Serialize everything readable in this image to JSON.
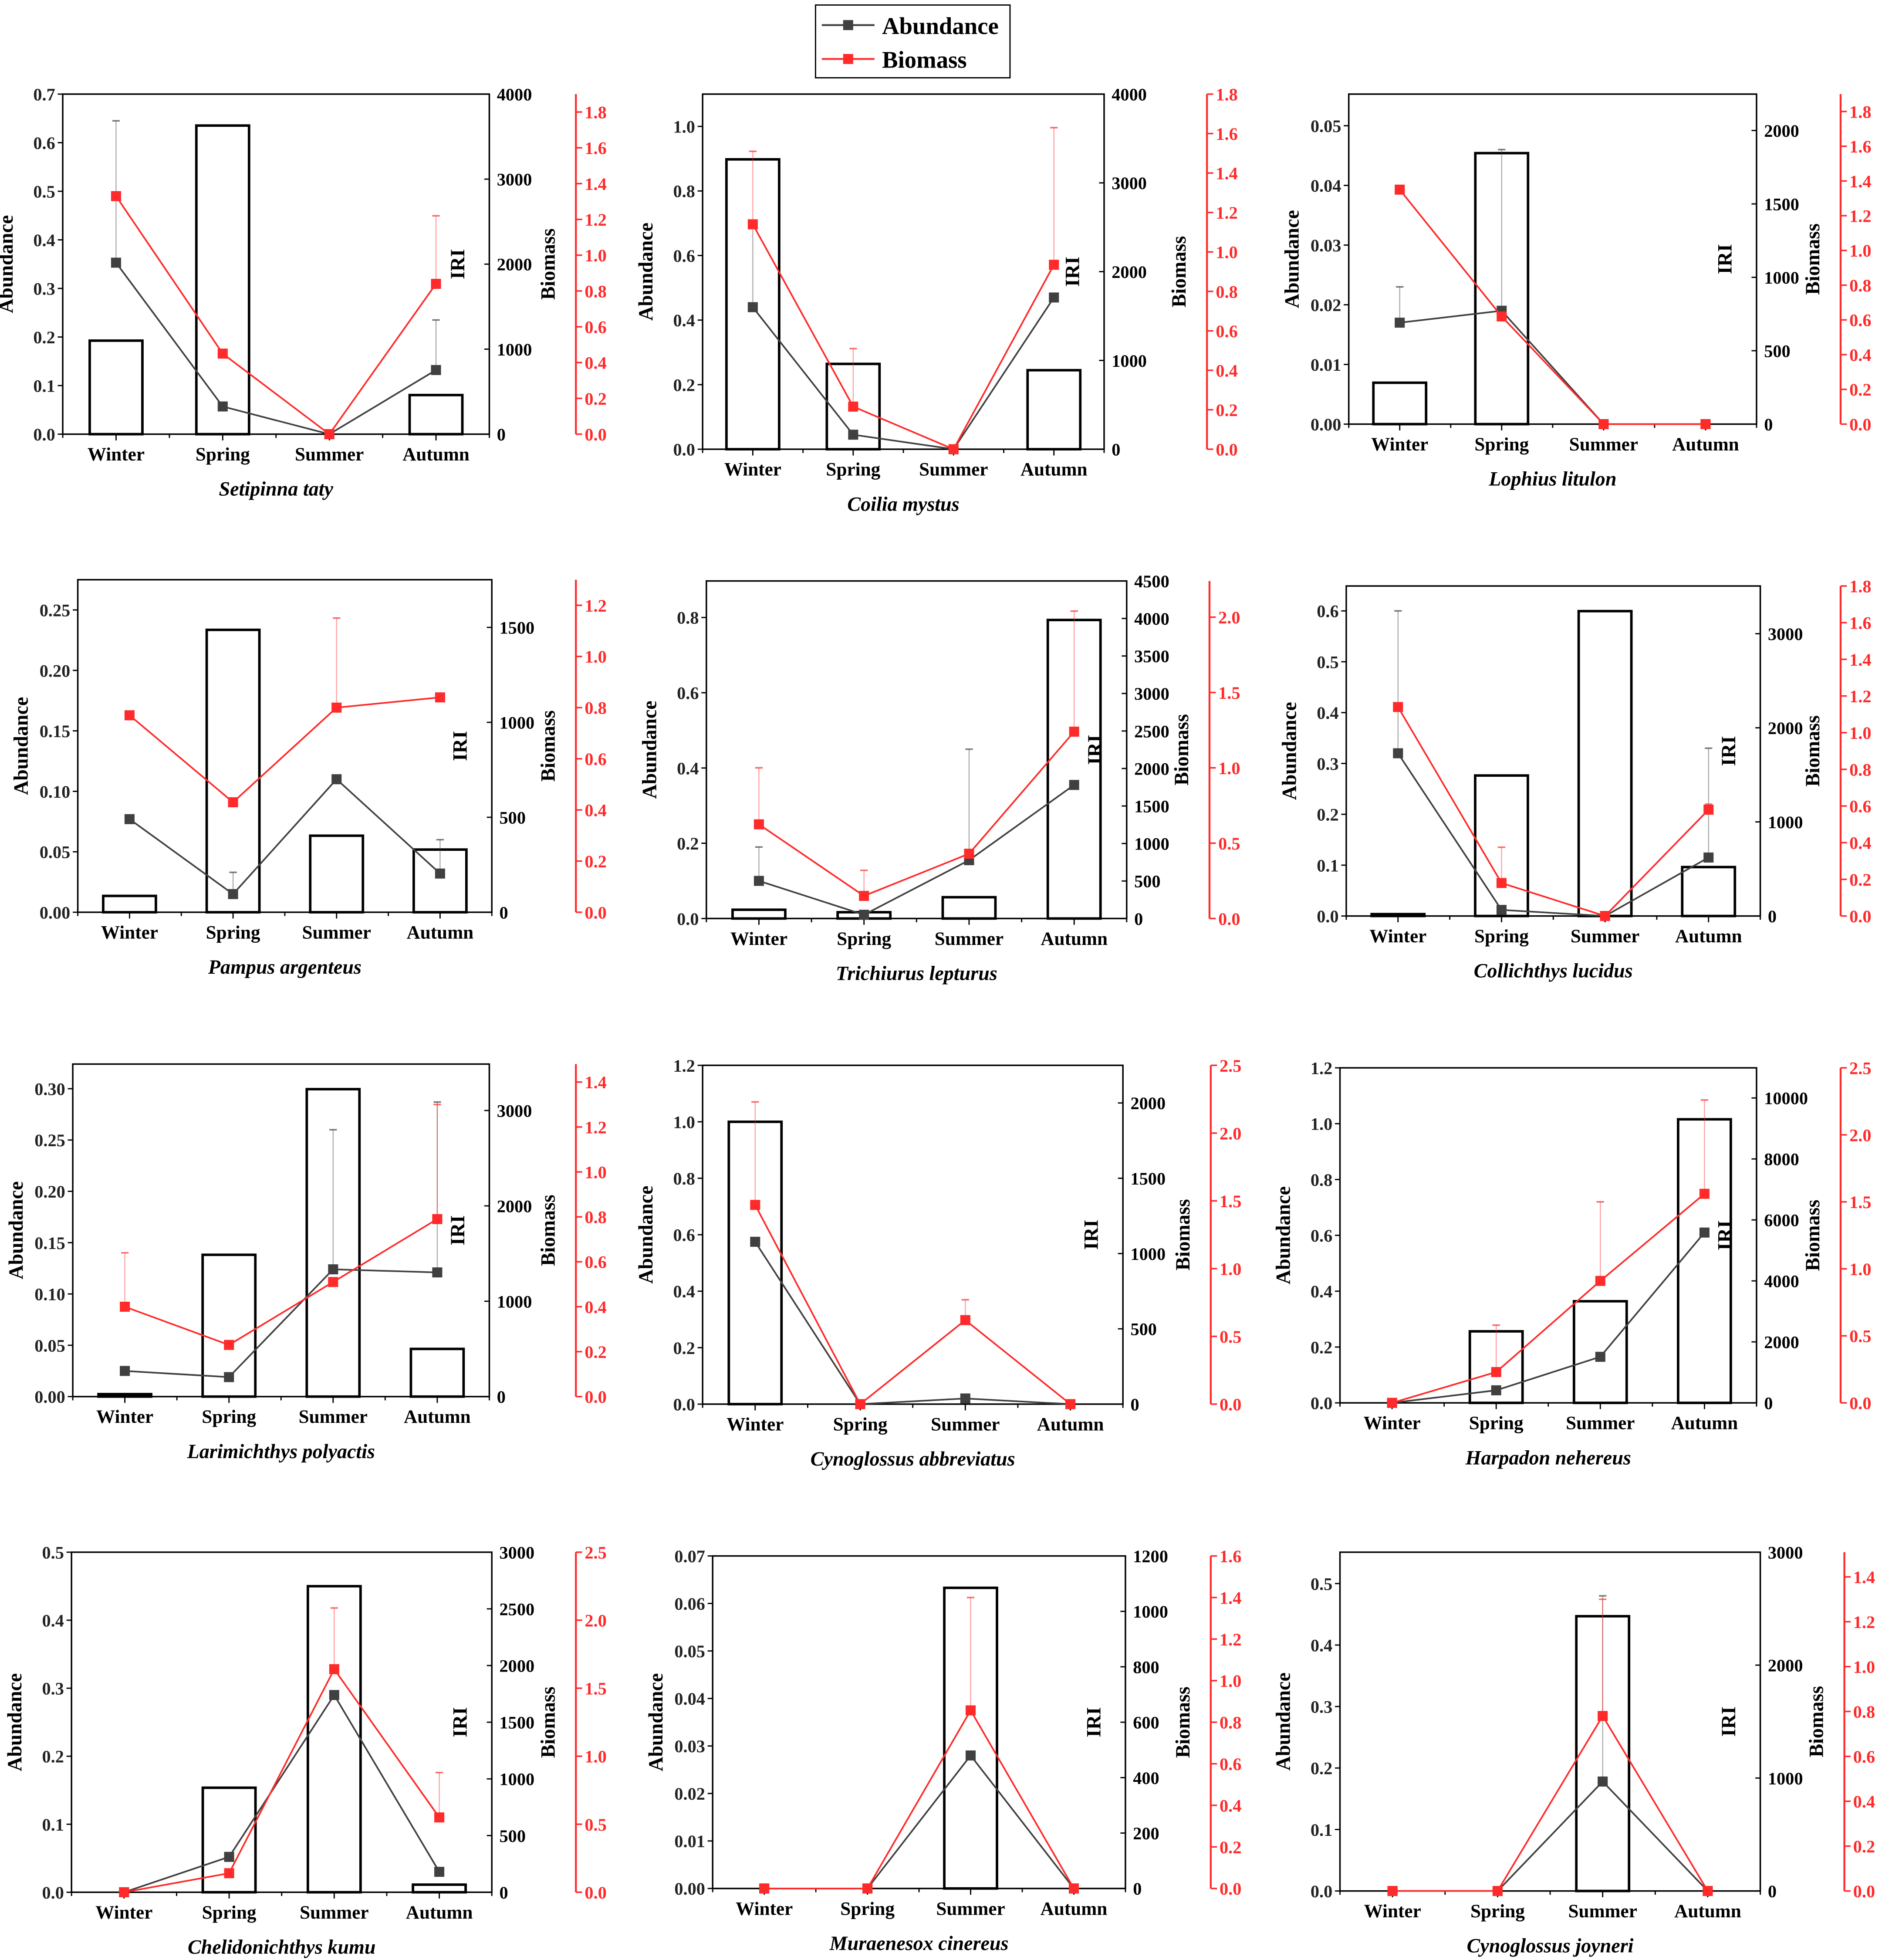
{
  "legend": {
    "entries": [
      {
        "label": "Abundance",
        "color": "#404040"
      },
      {
        "label": "Biomass",
        "color": "#ff2a2a"
      }
    ]
  },
  "chart_data": [
    {
      "type": "bar+line",
      "title": "Setipinna taty",
      "categories": [
        "Winter",
        "Spring",
        "Summer",
        "Autumn"
      ],
      "ylabel_left": "Abundance",
      "ylabel_iri": "IRI",
      "ylabel_right": "Biomass",
      "ab_lim": [
        0,
        0.7
      ],
      "ab_ticks": [
        "0.0",
        "0.1",
        "0.2",
        "0.3",
        "0.4",
        "0.5",
        "0.6",
        "0.7"
      ],
      "iri_lim": [
        0,
        4000
      ],
      "iri_ticks": [
        "0",
        "1000",
        "2000",
        "3000",
        "4000"
      ],
      "bio_lim": [
        0,
        1.9
      ],
      "bio_ticks": [
        "0.0",
        "0.2",
        "0.4",
        "0.6",
        "0.8",
        "1.0",
        "1.2",
        "1.4",
        "1.6",
        "1.8"
      ],
      "iri": [
        1100,
        3630,
        0,
        460
      ],
      "abundance": [
        0.353,
        0.057,
        0,
        0.132
      ],
      "biomass": [
        1.33,
        0.45,
        0,
        0.84
      ],
      "ab_err": [
        0.645,
        null,
        null,
        0.235
      ],
      "bio_err": [
        null,
        null,
        null,
        1.22
      ]
    },
    {
      "type": "bar+line",
      "title": "Coilia mystus",
      "categories": [
        "Winter",
        "Spring",
        "Summer",
        "Autumn"
      ],
      "ylabel_left": "Abundance",
      "ylabel_iri": "IRI",
      "ylabel_right": "Biomass",
      "ab_lim": [
        0,
        1.1
      ],
      "ab_ticks": [
        "0.0",
        "0.2",
        "0.4",
        "0.6",
        "0.8",
        "1.0"
      ],
      "iri_lim": [
        0,
        4000
      ],
      "iri_ticks": [
        "0",
        "1000",
        "2000",
        "3000",
        "4000"
      ],
      "bio_lim": [
        0,
        1.8
      ],
      "bio_ticks": [
        "0.0",
        "0.2",
        "0.4",
        "0.6",
        "0.8",
        "1.0",
        "1.2",
        "1.4",
        "1.6",
        "1.8"
      ],
      "iri": [
        3265,
        961,
        0,
        890
      ],
      "abundance": [
        0.44,
        0.045,
        0,
        0.47
      ],
      "biomass": [
        1.14,
        0.216,
        0,
        0.935
      ],
      "ab_err": [
        0.7,
        null,
        null,
        null
      ],
      "bio_err": [
        1.51,
        0.51,
        null,
        1.63
      ]
    },
    {
      "type": "bar+line",
      "title": "Lophius litulon",
      "categories": [
        "Winter",
        "Spring",
        "Summer",
        "Autumn"
      ],
      "ylabel_left": "Abundance",
      "ylabel_iri": "IRI",
      "ylabel_right": "Biomass",
      "ab_lim": [
        0,
        0.0553
      ],
      "ab_ticks": [
        "0.00",
        "0.01",
        "0.02",
        "0.03",
        "0.04",
        "0.05"
      ],
      "iri_lim": [
        0,
        2248
      ],
      "iri_ticks": [
        "0",
        "500",
        "1000",
        "1500",
        "2000"
      ],
      "bio_lim": [
        0,
        1.9
      ],
      "bio_ticks": [
        "0.0",
        "0.2",
        "0.4",
        "0.6",
        "0.8",
        "1.0",
        "1.2",
        "1.4",
        "1.6",
        "1.8"
      ],
      "iri": [
        282,
        1846,
        0,
        0
      ],
      "abundance": [
        0.017,
        0.019,
        0,
        0
      ],
      "biomass": [
        1.35,
        0.62,
        0,
        0
      ],
      "ab_err": [
        0.023,
        0.046,
        null,
        null
      ],
      "bio_err": [
        null,
        null,
        null,
        null
      ]
    },
    {
      "type": "bar+line",
      "title": "Pampus argenteus",
      "categories": [
        "Winter",
        "Spring",
        "Summer",
        "Autumn"
      ],
      "ylabel_left": "Abundance",
      "ylabel_iri": "IRI",
      "ylabel_right": "Biomass",
      "ab_lim": [
        0,
        0.275
      ],
      "ab_ticks": [
        "0.00",
        "0.05",
        "0.10",
        "0.15",
        "0.20",
        "0.25"
      ],
      "iri_lim": [
        0,
        1751
      ],
      "iri_ticks": [
        "0",
        "500",
        "1000",
        "1500"
      ],
      "bio_lim": [
        0,
        1.3
      ],
      "bio_ticks": [
        "0.0",
        "0.2",
        "0.4",
        "0.6",
        "0.8",
        "1.0",
        "1.2"
      ],
      "iri": [
        86,
        1487,
        403,
        330
      ],
      "abundance": [
        0.077,
        0.015,
        0.11,
        0.032
      ],
      "biomass": [
        0.77,
        0.43,
        0.8,
        0.84
      ],
      "ab_err": [
        null,
        0.033,
        null,
        0.06
      ],
      "bio_err": [
        null,
        null,
        1.15,
        null
      ]
    },
    {
      "type": "bar+line",
      "title": "Trichiurus lepturus",
      "categories": [
        "Winter",
        "Spring",
        "Summer",
        "Autumn"
      ],
      "ylabel_left": "Abundance",
      "ylabel_iri": "IRI",
      "ylabel_right": "Biomass",
      "ab_lim": [
        0,
        0.897
      ],
      "ab_ticks": [
        "0.0",
        "0.2",
        "0.4",
        "0.6",
        "0.8"
      ],
      "iri_lim": [
        0,
        4500
      ],
      "iri_ticks": [
        "0",
        "500",
        "1000",
        "1500",
        "2000",
        "2500",
        "3000",
        "3500",
        "4000",
        "4500"
      ],
      "bio_lim": [
        0,
        2.24
      ],
      "bio_ticks": [
        "0.0",
        "0.5",
        "1.0",
        "1.5",
        "2.0"
      ],
      "iri": [
        117,
        84,
        284,
        3980
      ],
      "abundance": [
        0.1,
        0.01,
        0.155,
        0.355
      ],
      "biomass": [
        0.625,
        0.15,
        0.43,
        1.24
      ],
      "ab_err": [
        0.19,
        null,
        0.45,
        null
      ],
      "bio_err": [
        1.0,
        0.32,
        null,
        2.04
      ]
    },
    {
      "type": "bar+line",
      "title": "Collichthys lucidus",
      "categories": [
        "Winter",
        "Spring",
        "Summer",
        "Autumn"
      ],
      "ylabel_left": "Abundance",
      "ylabel_iri": "IRI",
      "ylabel_right": "Biomass",
      "ab_lim": [
        0,
        0.649
      ],
      "ab_ticks": [
        "0.0",
        "0.1",
        "0.2",
        "0.3",
        "0.4",
        "0.5",
        "0.6"
      ],
      "iri_lim": [
        0,
        3507
      ],
      "iri_ticks": [
        "0",
        "1000",
        "2000",
        "3000"
      ],
      "bio_lim": [
        0,
        1.8
      ],
      "bio_ticks": [
        "0.0",
        "0.2",
        "0.4",
        "0.6",
        "0.8",
        "1.0",
        "1.2",
        "1.4",
        "1.6",
        "1.8"
      ],
      "iri": [
        20,
        1493,
        3240,
        520
      ],
      "abundance": [
        0.32,
        0.012,
        0,
        0.115
      ],
      "biomass": [
        1.14,
        0.18,
        0,
        0.58
      ],
      "ab_err": [
        0.6,
        null,
        null,
        0.33
      ],
      "bio_err": [
        null,
        0.375,
        null,
        0.61
      ]
    },
    {
      "type": "bar+line",
      "title": "Larimichthys polyactis",
      "categories": [
        "Winter",
        "Spring",
        "Summer",
        "Autumn"
      ],
      "ylabel_left": "Abundance",
      "ylabel_iri": "IRI",
      "ylabel_right": "Biomass",
      "ab_lim": [
        0,
        0.324
      ],
      "ab_ticks": [
        "0.00",
        "0.05",
        "0.10",
        "0.15",
        "0.20",
        "0.25",
        "0.30"
      ],
      "iri_lim": [
        0,
        3487
      ],
      "iri_ticks": [
        "0",
        "1000",
        "2000",
        "3000"
      ],
      "bio_lim": [
        0,
        1.48
      ],
      "bio_ticks": [
        "0.0",
        "0.2",
        "0.4",
        "0.6",
        "0.8",
        "1.0",
        "1.2",
        "1.4"
      ],
      "iri": [
        26,
        1487,
        3224,
        500
      ],
      "abundance": [
        0.025,
        0.019,
        0.124,
        0.121
      ],
      "biomass": [
        0.4,
        0.23,
        0.51,
        0.79
      ],
      "ab_err": [
        null,
        null,
        0.26,
        0.287
      ],
      "bio_err": [
        0.64,
        null,
        null,
        1.3
      ]
    },
    {
      "type": "bar+line",
      "title": "Cynoglossus abbreviatus",
      "categories": [
        "Winter",
        "Spring",
        "Summer",
        "Autumn"
      ],
      "ylabel_left": "Abundance",
      "ylabel_iri": "IRI",
      "ylabel_right": "Biomass",
      "ab_lim": [
        0,
        1.2
      ],
      "ab_ticks": [
        "0.0",
        "0.2",
        "0.4",
        "0.6",
        "0.8",
        "1.0",
        "1.2"
      ],
      "iri_lim": [
        0,
        2250
      ],
      "iri_ticks": [
        "0",
        "500",
        "1000",
        "1500",
        "2000"
      ],
      "bio_lim": [
        0,
        2.5
      ],
      "bio_ticks": [
        "0.0",
        "0.5",
        "1.0",
        "1.5",
        "2.0",
        "2.5"
      ],
      "iri": [
        1875,
        0,
        0,
        0
      ],
      "abundance": [
        0.575,
        0,
        0.02,
        0
      ],
      "biomass": [
        1.47,
        0,
        0.62,
        0
      ],
      "ab_err": [
        null,
        null,
        null,
        null
      ],
      "bio_err": [
        2.23,
        null,
        0.77,
        null
      ]
    },
    {
      "type": "bar+line",
      "title": "Harpadon nehereus",
      "categories": [
        "Winter",
        "Spring",
        "Summer",
        "Autumn"
      ],
      "ylabel_left": "Abundance",
      "ylabel_iri": "IRI",
      "ylabel_right": "Biomass",
      "ab_lim": [
        0,
        1.2
      ],
      "ab_ticks": [
        "0.0",
        "0.2",
        "0.4",
        "0.6",
        "0.8",
        "1.0",
        "1.2"
      ],
      "iri_lim": [
        0,
        10988
      ],
      "iri_ticks": [
        "0",
        "2000",
        "4000",
        "6000",
        "8000",
        "10000"
      ],
      "bio_lim": [
        0,
        2.5
      ],
      "bio_ticks": [
        "0.0",
        "0.5",
        "1.0",
        "1.5",
        "2.0",
        "2.5"
      ],
      "iri": [
        0,
        2346,
        3333,
        9300
      ],
      "abundance": [
        0,
        0.045,
        0.165,
        0.61
      ],
      "biomass": [
        0,
        0.23,
        0.91,
        1.56
      ],
      "ab_err": [
        null,
        null,
        null,
        null
      ],
      "bio_err": [
        null,
        0.58,
        1.5,
        2.26
      ]
    },
    {
      "type": "bar+line",
      "title": "Chelidonichthys kumu",
      "categories": [
        "Winter",
        "Spring",
        "Summer",
        "Autumn"
      ],
      "ylabel_left": "Abundance",
      "ylabel_iri": "IRI",
      "ylabel_right": "Biomass",
      "ab_lim": [
        0,
        0.5
      ],
      "ab_ticks": [
        "0.0",
        "0.1",
        "0.2",
        "0.3",
        "0.4",
        "0.5"
      ],
      "iri_lim": [
        0,
        3000
      ],
      "iri_ticks": [
        "0",
        "500",
        "1000",
        "1500",
        "2000",
        "2500",
        "3000"
      ],
      "bio_lim": [
        0,
        2.5
      ],
      "bio_ticks": [
        "0.0",
        "0.5",
        "1.0",
        "1.5",
        "2.0",
        "2.5"
      ],
      "iri": [
        0,
        922,
        2700,
        67
      ],
      "abundance": [
        0,
        0.052,
        0.29,
        0.03
      ],
      "biomass": [
        0,
        0.14,
        1.64,
        0.55
      ],
      "ab_err": [
        null,
        null,
        null,
        null
      ],
      "bio_err": [
        null,
        null,
        2.09,
        0.88
      ]
    },
    {
      "type": "bar+line",
      "title": "Muraenesox cinereus",
      "categories": [
        "Winter",
        "Spring",
        "Summer",
        "Autumn"
      ],
      "ylabel_left": "Abundance",
      "ylabel_iri": "IRI",
      "ylabel_right": "Biomass",
      "ab_lim": [
        0,
        0.07
      ],
      "ab_ticks": [
        "0.00",
        "0.01",
        "0.02",
        "0.03",
        "0.04",
        "0.05",
        "0.06",
        "0.07"
      ],
      "iri_lim": [
        0,
        1200
      ],
      "iri_ticks": [
        "0",
        "200",
        "400",
        "600",
        "800",
        "1000",
        "1200"
      ],
      "bio_lim": [
        0,
        1.6
      ],
      "bio_ticks": [
        "0.0",
        "0.2",
        "0.4",
        "0.6",
        "0.8",
        "1.0",
        "1.2",
        "1.4",
        "1.6"
      ],
      "iri": [
        0,
        0,
        1085,
        0
      ],
      "abundance": [
        0,
        0,
        0.028,
        0
      ],
      "biomass": [
        0,
        0,
        0.857,
        0
      ],
      "ab_err": [
        null,
        null,
        null,
        null
      ],
      "bio_err": [
        null,
        null,
        1.4,
        null
      ]
    },
    {
      "type": "bar+line",
      "title": "Cynoglossus joyneri",
      "categories": [
        "Winter",
        "Spring",
        "Summer",
        "Autumn"
      ],
      "ylabel_left": "Abundance",
      "ylabel_iri": "IRI",
      "ylabel_right": "Biomass",
      "ab_lim": [
        0,
        0.551
      ],
      "ab_ticks": [
        "0.0",
        "0.1",
        "0.2",
        "0.3",
        "0.4",
        "0.5"
      ],
      "iri_lim": [
        0,
        3000
      ],
      "iri_ticks": [
        "0",
        "1000",
        "2000",
        "3000"
      ],
      "bio_lim": [
        0,
        1.51
      ],
      "bio_ticks": [
        "0.0",
        "0.2",
        "0.4",
        "0.6",
        "0.8",
        "1.0",
        "1.2",
        "1.4"
      ],
      "iri": [
        0,
        0,
        2433,
        0
      ],
      "abundance": [
        0,
        0,
        0.178,
        0
      ],
      "biomass": [
        0,
        0,
        0.78,
        0
      ],
      "ab_err": [
        null,
        null,
        0.48,
        null
      ],
      "bio_err": [
        null,
        null,
        1.3,
        null
      ]
    }
  ]
}
